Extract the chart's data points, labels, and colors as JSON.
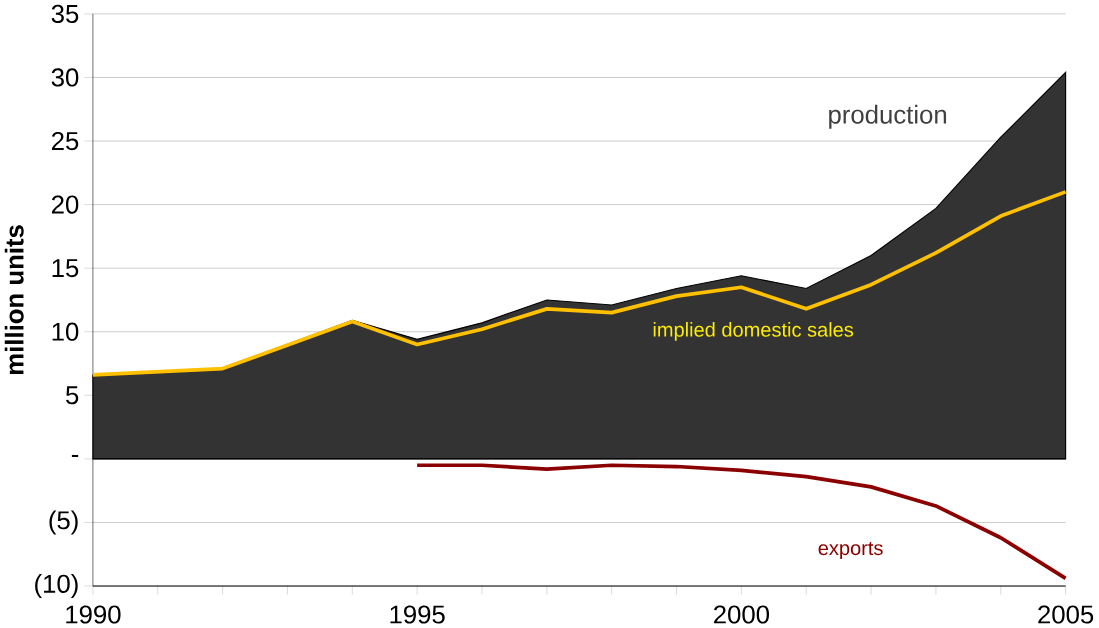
{
  "chart_data": {
    "type": "area",
    "ylabel": "million units",
    "xlim": [
      1990,
      2005
    ],
    "ylim": [
      -10,
      35
    ],
    "xticks": [
      1990,
      {
        "value": 1991,
        "label": null
      },
      {
        "value": 1992,
        "label": null
      },
      {
        "value": 1993,
        "label": null
      },
      {
        "value": 1994,
        "label": null
      },
      1995,
      {
        "value": 1996,
        "label": null
      },
      {
        "value": 1997,
        "label": null
      },
      {
        "value": 1998,
        "label": null
      },
      {
        "value": 1999,
        "label": null
      },
      2000,
      {
        "value": 2001,
        "label": null
      },
      {
        "value": 2002,
        "label": null
      },
      {
        "value": 2003,
        "label": null
      },
      {
        "value": 2004,
        "label": null
      },
      2005
    ],
    "yticks": [
      {
        "value": -10,
        "label": "(10)"
      },
      {
        "value": -5,
        "label": "(5)"
      },
      {
        "value": 0,
        "label": "-"
      },
      5,
      10,
      15,
      20,
      25,
      30,
      35
    ],
    "grid": "y",
    "series": [
      {
        "name": "production",
        "color": "#333333",
        "x": [
          1990,
          1992,
          1994,
          1995,
          1996,
          1997,
          1998,
          1999,
          2000,
          2001,
          2002,
          2003,
          2004,
          2005
        ],
        "values": [
          6.6,
          7.1,
          10.9,
          9.4,
          10.7,
          12.5,
          12.1,
          13.4,
          14.4,
          13.4,
          16.0,
          19.7,
          25.3,
          30.4
        ]
      },
      {
        "name": "implied domestic sales",
        "type": "line",
        "color": "#ffc000",
        "x": [
          1990,
          1992,
          1994,
          1995,
          1996,
          1997,
          1998,
          1999,
          2000,
          2001,
          2002,
          2003,
          2004,
          2005
        ],
        "values": [
          6.6,
          7.1,
          10.8,
          9.0,
          10.2,
          11.8,
          11.5,
          12.8,
          13.5,
          11.8,
          13.7,
          16.2,
          19.1,
          21.0
        ]
      },
      {
        "name": "exports",
        "type": "line",
        "color": "#8b0000",
        "x": [
          1995,
          1996,
          1997,
          1998,
          1999,
          2000,
          2001,
          2002,
          2003,
          2004,
          2005
        ],
        "values": [
          -0.5,
          -0.5,
          -0.8,
          -0.5,
          -0.6,
          -0.9,
          -1.4,
          -2.2,
          -3.7,
          -6.2,
          -9.4
        ]
      }
    ]
  }
}
